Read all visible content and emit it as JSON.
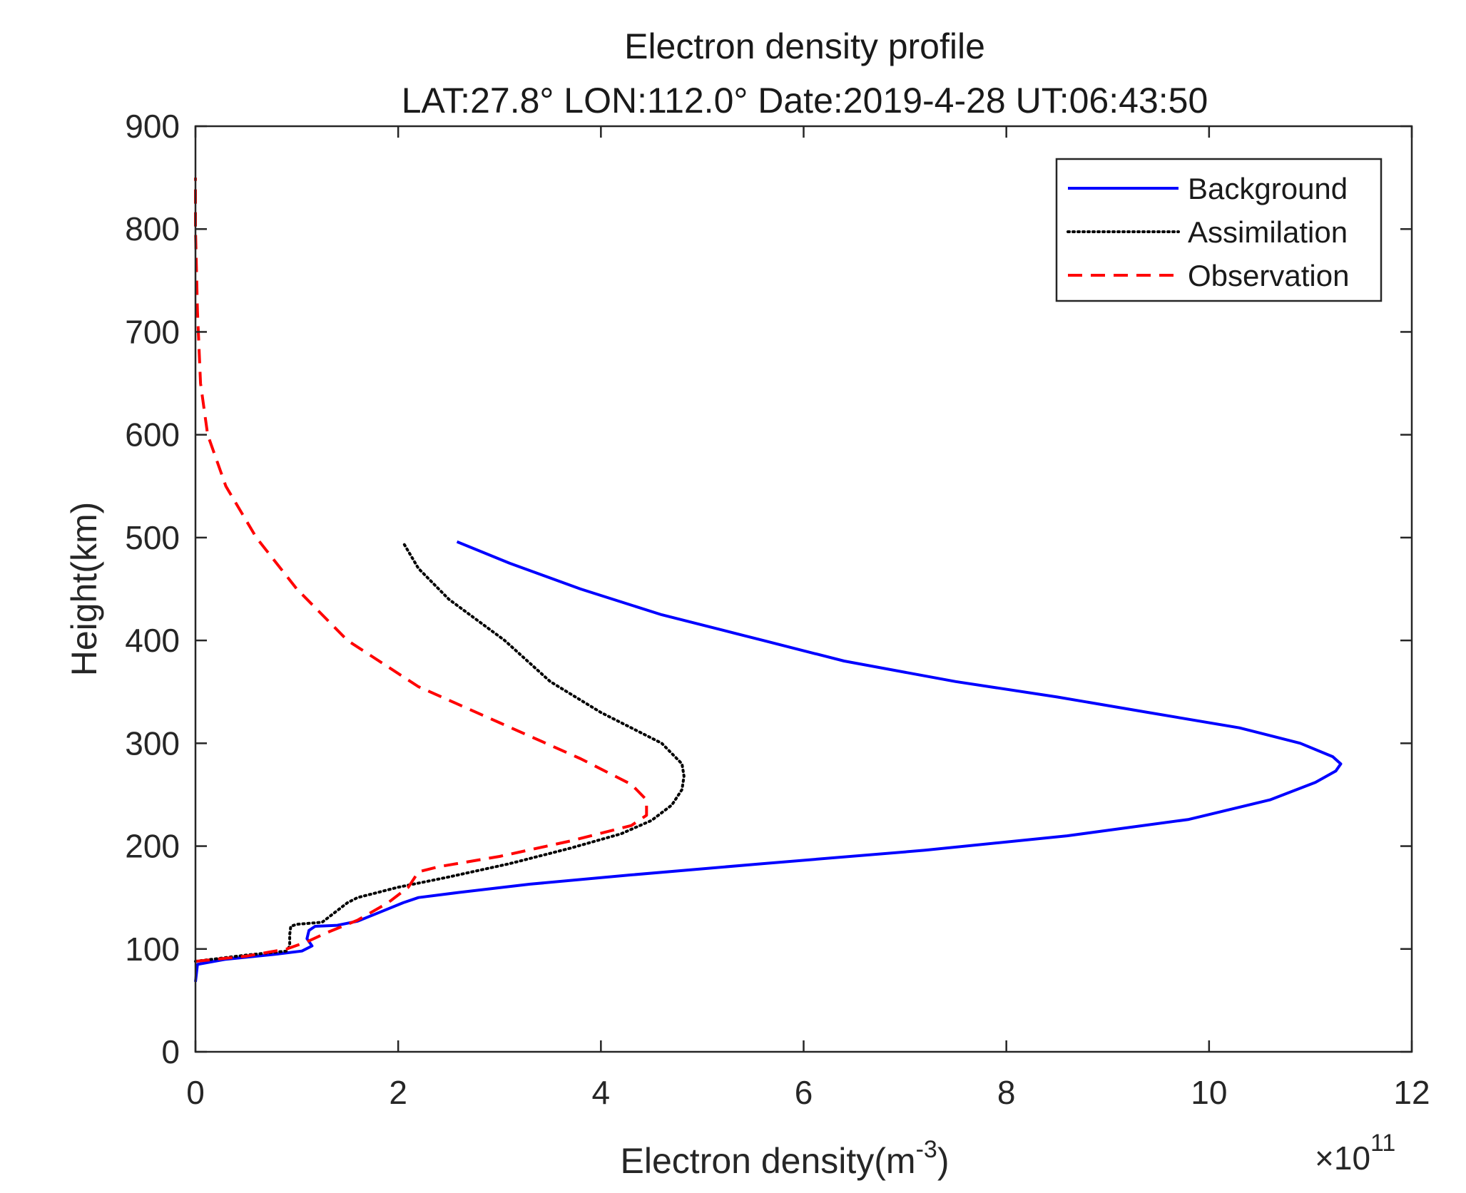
{
  "chart_data": {
    "type": "line",
    "title": "Electron density profile",
    "subtitle": "LAT:27.8° LON:112.0°  Date:2019-4-28  UT:06:43:50",
    "xlabel_main": "Electron density(m",
    "xlabel_sup": "-3",
    "xlabel_end": ")",
    "ylabel": "Height(km)",
    "exponent_times": "×10",
    "exponent_power": "11",
    "xlim": [
      0,
      12
    ],
    "ylim": [
      0,
      900
    ],
    "xticks": [
      "0",
      "2",
      "4",
      "6",
      "8",
      "10",
      "12"
    ],
    "yticks": [
      "0",
      "100",
      "200",
      "300",
      "400",
      "500",
      "600",
      "700",
      "800",
      "900"
    ],
    "grid": false,
    "legend_position": "top-right",
    "series": [
      {
        "name": "Background",
        "color": "#0000ff",
        "style": "solid",
        "points": [
          [
            0.0,
            68
          ],
          [
            0.02,
            85
          ],
          [
            0.3,
            90
          ],
          [
            0.8,
            95
          ],
          [
            1.05,
            98
          ],
          [
            1.15,
            103
          ],
          [
            1.1,
            110
          ],
          [
            1.12,
            118
          ],
          [
            1.18,
            122
          ],
          [
            1.4,
            123
          ],
          [
            1.6,
            127
          ],
          [
            1.8,
            135
          ],
          [
            2.05,
            145
          ],
          [
            2.2,
            150
          ],
          [
            2.6,
            155
          ],
          [
            3.3,
            163
          ],
          [
            4.3,
            172
          ],
          [
            5.6,
            183
          ],
          [
            7.2,
            196
          ],
          [
            8.6,
            210
          ],
          [
            9.8,
            226
          ],
          [
            10.6,
            245
          ],
          [
            11.05,
            262
          ],
          [
            11.25,
            273
          ],
          [
            11.3,
            280
          ],
          [
            11.22,
            287
          ],
          [
            10.9,
            300
          ],
          [
            10.3,
            315
          ],
          [
            9.4,
            330
          ],
          [
            8.5,
            345
          ],
          [
            7.5,
            360
          ],
          [
            6.4,
            380
          ],
          [
            5.6,
            400
          ],
          [
            4.6,
            425
          ],
          [
            3.8,
            450
          ],
          [
            3.1,
            475
          ],
          [
            2.58,
            496
          ]
        ]
      },
      {
        "name": "Assimilation",
        "color": "#000000",
        "style": "dotted",
        "points": [
          [
            0.0,
            88
          ],
          [
            0.5,
            94
          ],
          [
            0.9,
            98
          ],
          [
            0.93,
            103
          ],
          [
            0.93,
            114
          ],
          [
            0.94,
            122
          ],
          [
            1.0,
            124
          ],
          [
            1.25,
            126
          ],
          [
            1.5,
            145
          ],
          [
            1.6,
            150
          ],
          [
            2.0,
            160
          ],
          [
            2.5,
            170
          ],
          [
            3.1,
            183
          ],
          [
            3.7,
            198
          ],
          [
            4.2,
            212
          ],
          [
            4.5,
            225
          ],
          [
            4.7,
            240
          ],
          [
            4.8,
            255
          ],
          [
            4.82,
            268
          ],
          [
            4.8,
            280
          ],
          [
            4.6,
            300
          ],
          [
            4.0,
            330
          ],
          [
            3.5,
            360
          ],
          [
            3.05,
            400
          ],
          [
            2.5,
            440
          ],
          [
            2.2,
            470
          ],
          [
            2.05,
            495
          ]
        ]
      },
      {
        "name": "Observation",
        "color": "#ff0000",
        "style": "dashed",
        "points": [
          [
            0.0,
            88
          ],
          [
            0.5,
            93
          ],
          [
            0.9,
            100
          ],
          [
            1.1,
            107
          ],
          [
            1.3,
            116
          ],
          [
            1.6,
            128
          ],
          [
            1.9,
            145
          ],
          [
            2.1,
            160
          ],
          [
            2.2,
            175
          ],
          [
            2.4,
            180
          ],
          [
            3.0,
            190
          ],
          [
            3.7,
            205
          ],
          [
            4.3,
            220
          ],
          [
            4.45,
            230
          ],
          [
            4.45,
            245
          ],
          [
            4.3,
            260
          ],
          [
            3.8,
            285
          ],
          [
            3.0,
            320
          ],
          [
            2.2,
            355
          ],
          [
            1.5,
            400
          ],
          [
            1.0,
            450
          ],
          [
            0.6,
            500
          ],
          [
            0.3,
            550
          ],
          [
            0.12,
            600
          ],
          [
            0.05,
            650
          ],
          [
            0.02,
            720
          ],
          [
            0.0,
            800
          ],
          [
            0.0,
            850
          ]
        ]
      }
    ]
  }
}
